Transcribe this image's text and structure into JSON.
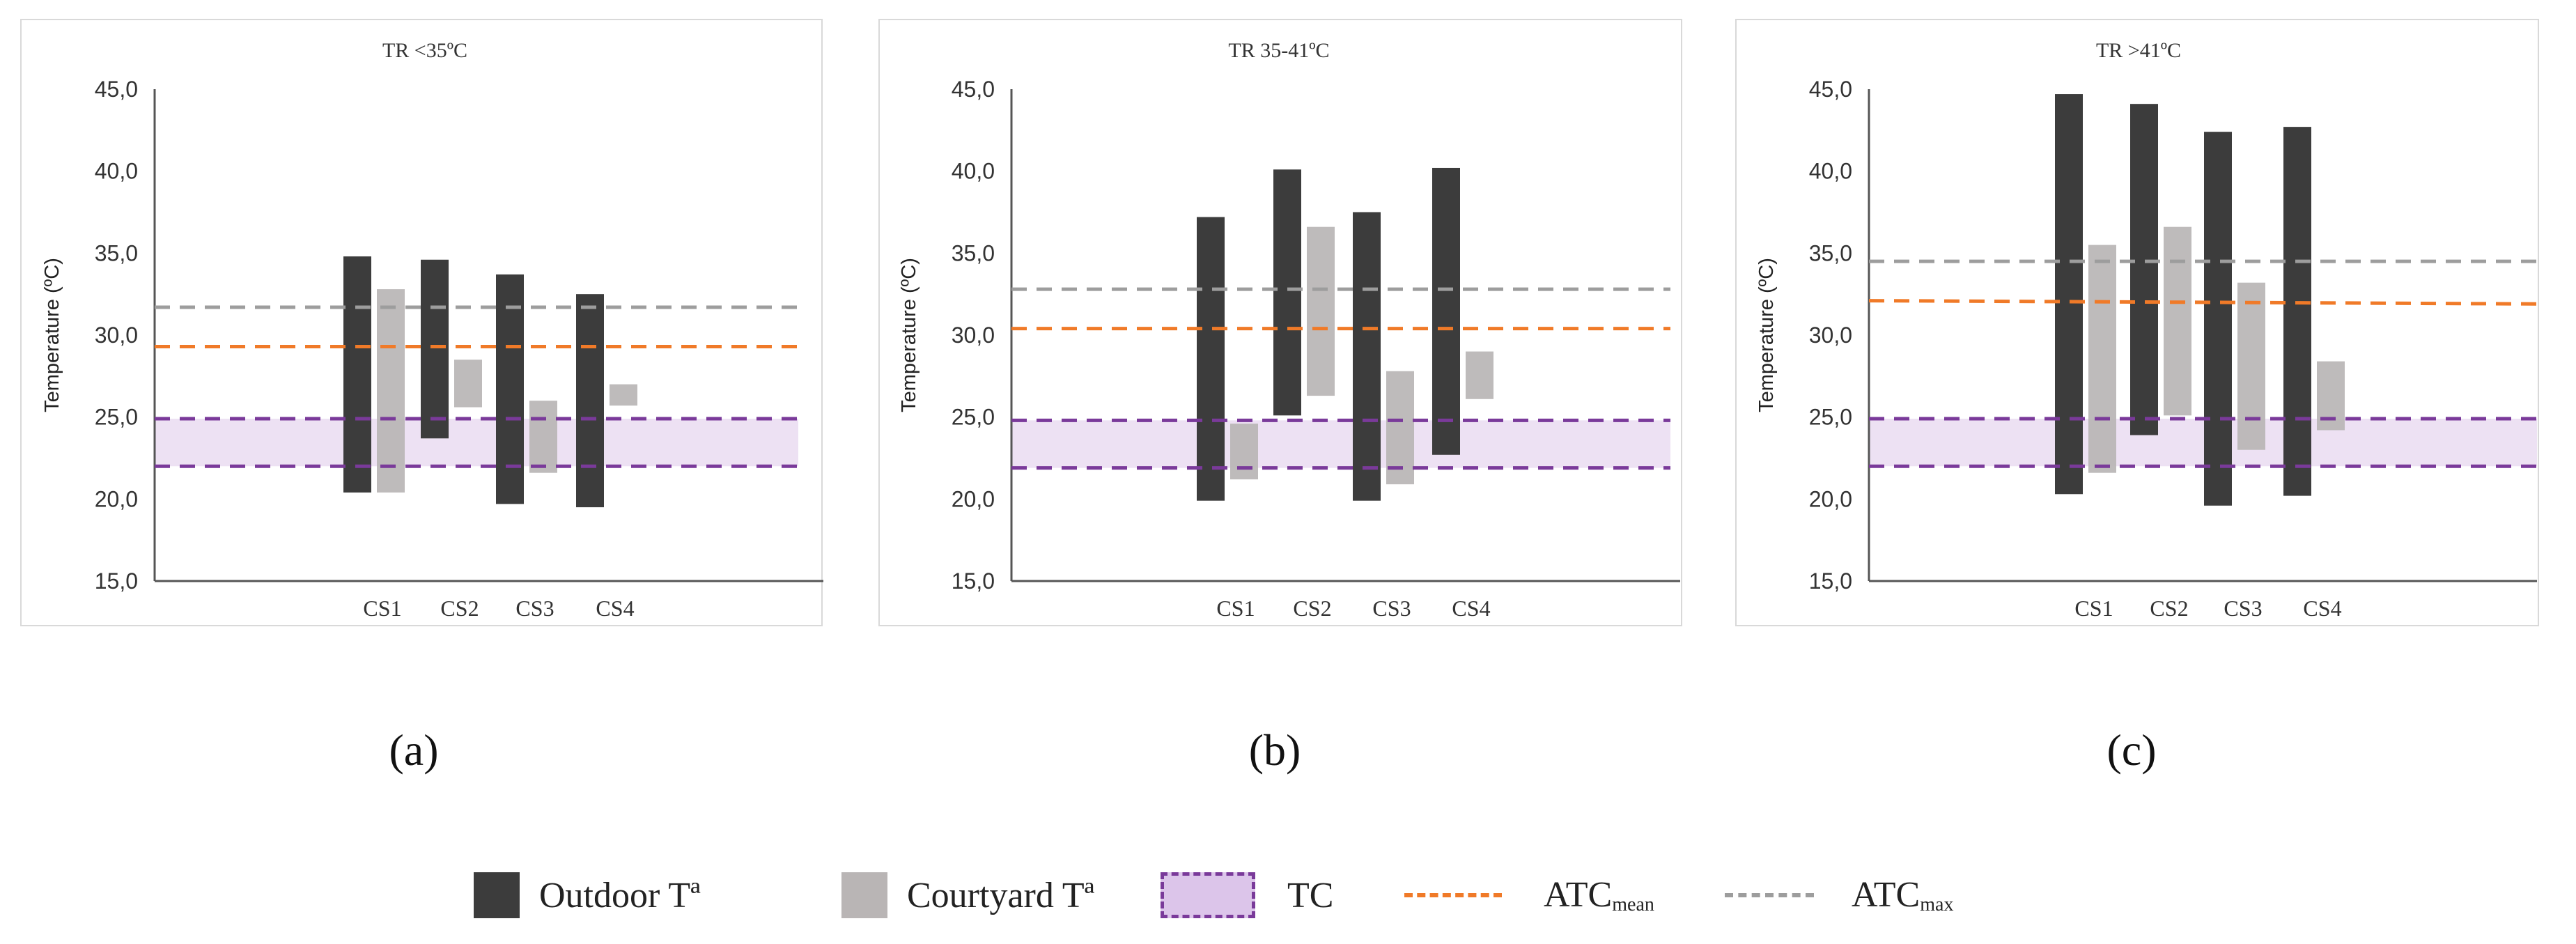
{
  "colors": {
    "outdoor": "#3c3c3c",
    "courtyard": "#b9b5b5",
    "tc_fill": "#ede1f3",
    "tc_line": "#7a3a9a",
    "atc_mean": "#f07a28",
    "atc_max": "#9d9d9d",
    "axis": "#555555"
  },
  "chart_data": [
    {
      "type": "bar",
      "panel_label": "(a)",
      "title": "TR <35ºC",
      "ylabel": "Temperature (ºC)",
      "ylim": [
        15,
        45
      ],
      "yticks": [
        "15,0",
        "20,0",
        "25,0",
        "30,0",
        "35,0",
        "40,0",
        "45,0"
      ],
      "categories": [
        "CS1",
        "CS2",
        "CS3",
        "CS4"
      ],
      "series": [
        {
          "name": "Outdoor Tª",
          "ranges": [
            [
              20.4,
              34.8
            ],
            [
              23.7,
              34.6
            ],
            [
              19.7,
              33.7
            ],
            [
              19.5,
              32.5
            ]
          ]
        },
        {
          "name": "Courtyard Tª",
          "ranges": [
            [
              20.4,
              32.8
            ],
            [
              25.6,
              28.5
            ],
            [
              21.6,
              26.0
            ],
            [
              25.7,
              27.0
            ]
          ]
        }
      ],
      "tc": [
        22.0,
        24.9
      ],
      "atc_mean": 29.3,
      "atc_max": 31.7
    },
    {
      "type": "bar",
      "panel_label": "(b)",
      "title": "TR 35-41ºC",
      "ylabel": "Temperature (ºC)",
      "ylim": [
        15,
        45
      ],
      "yticks": [
        "15,0",
        "20,0",
        "25,0",
        "30,0",
        "35,0",
        "40,0",
        "45,0"
      ],
      "categories": [
        "CS1",
        "CS2",
        "CS3",
        "CS4"
      ],
      "series": [
        {
          "name": "Outdoor Tª",
          "ranges": [
            [
              19.9,
              37.2
            ],
            [
              25.1,
              40.1
            ],
            [
              19.9,
              37.5
            ],
            [
              22.7,
              40.2
            ]
          ]
        },
        {
          "name": "Courtyard Tª",
          "ranges": [
            [
              21.2,
              24.6
            ],
            [
              26.3,
              36.6
            ],
            [
              20.9,
              27.8
            ],
            [
              26.1,
              29.0
            ]
          ]
        }
      ],
      "tc": [
        21.9,
        24.8
      ],
      "atc_mean": 30.4,
      "atc_max": 32.8
    },
    {
      "type": "bar",
      "panel_label": "(c)",
      "title": "TR >41ºC",
      "ylabel": "Temperature (ºC)",
      "ylim": [
        15,
        45
      ],
      "yticks": [
        "15,0",
        "20,0",
        "25,0",
        "30,0",
        "35,0",
        "40,0",
        "45,0"
      ],
      "categories": [
        "CS1",
        "CS2",
        "CS3",
        "CS4"
      ],
      "series": [
        {
          "name": "Outdoor Tª",
          "ranges": [
            [
              20.3,
              44.7
            ],
            [
              23.9,
              44.1
            ],
            [
              19.6,
              42.4
            ],
            [
              20.2,
              42.7
            ]
          ]
        },
        {
          "name": "Courtyard Tª",
          "ranges": [
            [
              21.6,
              35.5
            ],
            [
              25.1,
              36.6
            ],
            [
              23.0,
              33.2
            ],
            [
              24.2,
              28.4
            ]
          ]
        }
      ],
      "tc": [
        22.0,
        24.9
      ],
      "atc_mean": [
        32.1,
        31.9
      ],
      "atc_max": 34.5
    }
  ],
  "legend": {
    "outdoor": "Outdoor Tª",
    "courtyard": "Courtyard Tª",
    "tc": "TC",
    "atc_mean_main": "ATC",
    "atc_mean_sub": "mean",
    "atc_max_main": "ATC",
    "atc_max_sub": "max"
  }
}
